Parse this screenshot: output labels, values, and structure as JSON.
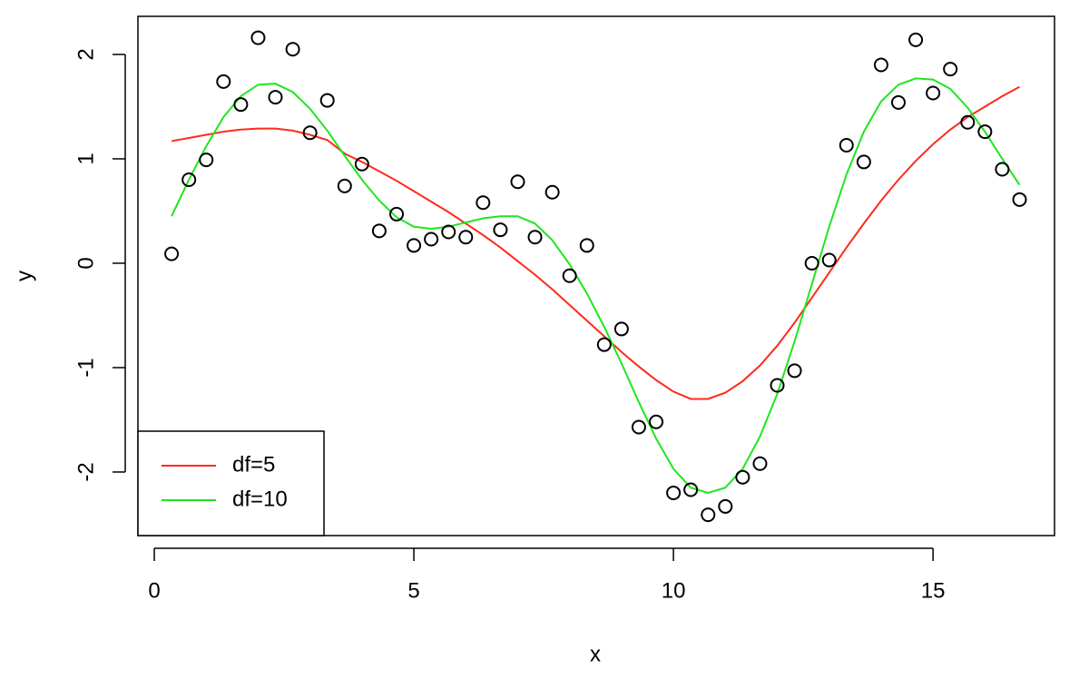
{
  "chart_data": {
    "type": "scatter",
    "x_label": "x",
    "y_label": "y",
    "x": [
      0.333,
      0.667,
      1.0,
      1.333,
      1.667,
      2.0,
      2.333,
      2.667,
      3.0,
      3.333,
      3.667,
      4.0,
      4.333,
      4.667,
      5.0,
      5.333,
      5.667,
      6.0,
      6.333,
      6.667,
      7.0,
      7.333,
      7.667,
      8.0,
      8.333,
      8.667,
      9.0,
      9.333,
      9.667,
      10.0,
      10.333,
      10.667,
      11.0,
      11.333,
      11.667,
      12.0,
      12.333,
      12.667,
      13.0,
      13.333,
      13.667,
      14.0,
      14.333,
      14.667,
      15.0,
      15.333,
      15.667,
      16.0,
      16.333,
      16.667
    ],
    "values": [
      0.09,
      0.8,
      0.99,
      1.74,
      1.52,
      2.16,
      1.59,
      2.05,
      1.25,
      1.56,
      0.74,
      0.95,
      0.31,
      0.47,
      0.17,
      0.23,
      0.3,
      0.25,
      0.58,
      0.32,
      0.78,
      0.25,
      0.68,
      -0.12,
      0.17,
      -0.78,
      -0.63,
      -1.57,
      -1.52,
      -2.2,
      -2.17,
      -2.41,
      -2.33,
      -2.05,
      -1.92,
      -1.17,
      -1.03,
      0.0,
      0.03,
      1.13,
      0.97,
      1.9,
      1.54,
      2.14,
      1.63,
      1.86,
      1.35,
      1.26,
      0.9,
      0.61
    ],
    "color": "#000000",
    "series": [
      {
        "name": "df=5",
        "color": "#ff2a1a",
        "values": [
          1.17,
          1.2,
          1.23,
          1.26,
          1.28,
          1.29,
          1.29,
          1.27,
          1.23,
          1.18,
          1.05,
          0.97,
          0.88,
          0.79,
          0.69,
          0.59,
          0.49,
          0.38,
          0.27,
          0.15,
          0.02,
          -0.11,
          -0.25,
          -0.4,
          -0.55,
          -0.7,
          -0.85,
          -0.99,
          -1.12,
          -1.23,
          -1.3,
          -1.3,
          -1.24,
          -1.13,
          -0.98,
          -0.79,
          -0.57,
          -0.33,
          -0.09,
          0.15,
          0.38,
          0.6,
          0.8,
          0.98,
          1.14,
          1.28,
          1.4,
          1.5,
          1.6,
          1.69
        ]
      },
      {
        "name": "df=10",
        "color": "#1fe61f",
        "values": [
          0.45,
          0.8,
          1.12,
          1.4,
          1.6,
          1.71,
          1.72,
          1.64,
          1.48,
          1.27,
          1.03,
          0.8,
          0.6,
          0.44,
          0.35,
          0.33,
          0.35,
          0.39,
          0.43,
          0.45,
          0.45,
          0.38,
          0.22,
          -0.01,
          -0.29,
          -0.61,
          -0.96,
          -1.33,
          -1.68,
          -1.97,
          -2.15,
          -2.2,
          -2.15,
          -1.97,
          -1.66,
          -1.25,
          -0.75,
          -0.2,
          0.35,
          0.85,
          1.26,
          1.55,
          1.71,
          1.77,
          1.76,
          1.67,
          1.49,
          1.26,
          1.0,
          0.75
        ]
      }
    ],
    "xlim": [
      -0.315,
      17.34
    ],
    "ylim": [
      -2.609,
      2.365
    ],
    "xticks": [
      0,
      5,
      10,
      15
    ],
    "yticks": [
      -2,
      -1,
      0,
      1,
      2
    ],
    "legend": "bottom-left"
  }
}
